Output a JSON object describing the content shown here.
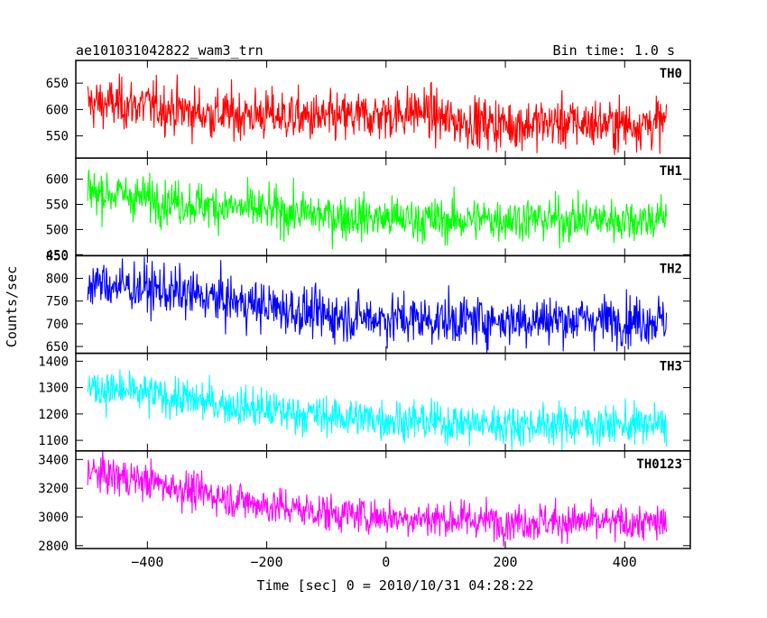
{
  "header": {
    "title": "ae101031042822_wam3_trn",
    "bin_time": "Bin time: 1.0 s"
  },
  "axes": {
    "ylabel": "Counts/sec",
    "xlabel": "Time [sec] 0 = 2010/10/31 04:28:22"
  },
  "chart_data": {
    "type": "line",
    "x_range": [
      -500,
      470
    ],
    "xlim": [
      -520,
      510
    ],
    "x_ticks": [
      -400,
      -200,
      0,
      200,
      400
    ],
    "x_tick_labels": [
      "−400",
      "−200",
      "0",
      "200",
      "400"
    ],
    "bin_time_sec": 1.0,
    "panels": [
      {
        "name": "TH0",
        "color": "#ff0000",
        "ylim": [
          508,
          693
        ],
        "y_ticks": [
          550,
          600,
          650
        ],
        "trend": [
          [
            -500,
            612
          ],
          [
            -400,
            608
          ],
          [
            -300,
            592
          ],
          [
            -200,
            590
          ],
          [
            -100,
            582
          ],
          [
            0,
            590
          ],
          [
            60,
            598
          ],
          [
            100,
            580
          ],
          [
            200,
            572
          ],
          [
            300,
            575
          ],
          [
            400,
            572
          ],
          [
            470,
            575
          ]
        ],
        "noise_sd": 24
      },
      {
        "name": "TH1",
        "color": "#00ff00",
        "ylim": [
          448,
          642
        ],
        "y_ticks": [
          450,
          500,
          550,
          600
        ],
        "trend": [
          [
            -500,
            578
          ],
          [
            -400,
            562
          ],
          [
            -300,
            548
          ],
          [
            -200,
            538
          ],
          [
            -100,
            528
          ],
          [
            0,
            522
          ],
          [
            100,
            518
          ],
          [
            200,
            522
          ],
          [
            300,
            520
          ],
          [
            400,
            520
          ],
          [
            470,
            522
          ]
        ],
        "noise_sd": 22
      },
      {
        "name": "TH2",
        "color": "#0000ff",
        "ylim": [
          635,
          850
        ],
        "y_ticks": [
          650,
          700,
          750,
          800,
          850
        ],
        "trend": [
          [
            -500,
            790
          ],
          [
            -400,
            778
          ],
          [
            -300,
            758
          ],
          [
            -200,
            738
          ],
          [
            -100,
            718
          ],
          [
            0,
            712
          ],
          [
            100,
            708
          ],
          [
            200,
            708
          ],
          [
            300,
            710
          ],
          [
            400,
            708
          ],
          [
            470,
            710
          ]
        ],
        "noise_sd": 27
      },
      {
        "name": "TH3",
        "color": "#00ffff",
        "ylim": [
          1060,
          1430
        ],
        "y_ticks": [
          1100,
          1200,
          1300,
          1400
        ],
        "trend": [
          [
            -500,
            1300
          ],
          [
            -400,
            1275
          ],
          [
            -300,
            1245
          ],
          [
            -200,
            1215
          ],
          [
            -100,
            1192
          ],
          [
            0,
            1180
          ],
          [
            100,
            1168
          ],
          [
            200,
            1160
          ],
          [
            300,
            1160
          ],
          [
            400,
            1158
          ],
          [
            470,
            1160
          ]
        ],
        "noise_sd": 38
      },
      {
        "name": "TH0123",
        "color": "#ff00ff",
        "ylim": [
          2780,
          3460
        ],
        "y_ticks": [
          2800,
          3000,
          3200,
          3400
        ],
        "trend": [
          [
            -500,
            3310
          ],
          [
            -400,
            3250
          ],
          [
            -300,
            3160
          ],
          [
            -200,
            3080
          ],
          [
            -100,
            3030
          ],
          [
            0,
            3000
          ],
          [
            100,
            2985
          ],
          [
            200,
            2970
          ],
          [
            300,
            2968
          ],
          [
            400,
            2955
          ],
          [
            470,
            2960
          ]
        ],
        "noise_sd": 65
      }
    ]
  }
}
